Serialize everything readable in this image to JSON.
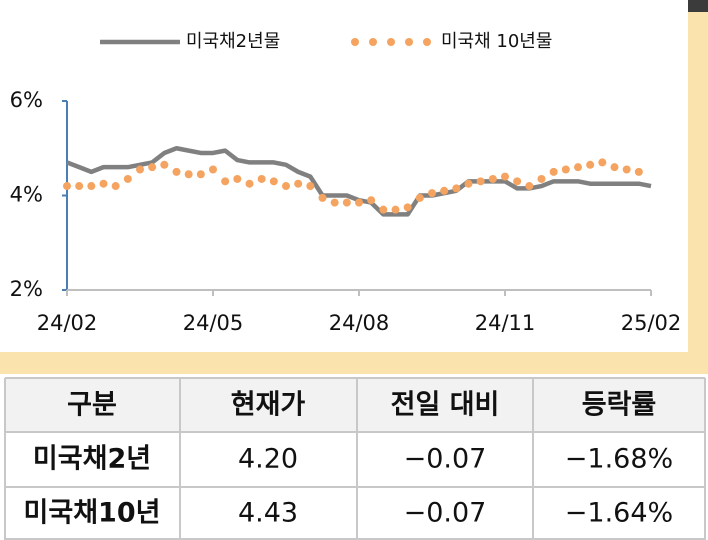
{
  "chart_data": {
    "type": "line",
    "categories": [
      "24/02",
      null,
      null,
      null,
      null,
      null,
      null,
      null,
      null,
      null,
      null,
      null,
      "24/05",
      null,
      null,
      null,
      null,
      null,
      null,
      null,
      null,
      null,
      null,
      null,
      "24/08",
      null,
      null,
      null,
      null,
      null,
      null,
      null,
      null,
      null,
      null,
      null,
      "24/11",
      null,
      null,
      null,
      null,
      null,
      null,
      null,
      null,
      null,
      null,
      null,
      "25/02"
    ],
    "series": [
      {
        "name": "미국채2년물",
        "color": "#808080",
        "style": "line",
        "values": [
          4.7,
          4.6,
          4.5,
          4.6,
          4.6,
          4.6,
          4.65,
          4.7,
          4.9,
          5.0,
          4.95,
          4.9,
          4.9,
          4.95,
          4.75,
          4.7,
          4.7,
          4.7,
          4.65,
          4.5,
          4.4,
          4.0,
          4.0,
          4.0,
          3.9,
          3.85,
          3.6,
          3.6,
          3.6,
          4.0,
          4.0,
          4.05,
          4.1,
          4.3,
          4.3,
          4.3,
          4.3,
          4.15,
          4.15,
          4.2,
          4.3,
          4.3,
          4.3,
          4.25,
          4.25,
          4.25,
          4.25,
          4.25,
          4.2
        ]
      },
      {
        "name": "미국채 10년물",
        "color": "#f4a460",
        "style": "dots",
        "values": [
          4.2,
          4.2,
          4.2,
          4.25,
          4.2,
          4.35,
          4.55,
          4.6,
          4.65,
          4.5,
          4.45,
          4.45,
          4.55,
          4.3,
          4.35,
          4.25,
          4.35,
          4.3,
          4.2,
          4.25,
          4.2,
          3.95,
          3.85,
          3.85,
          3.85,
          3.9,
          3.7,
          3.7,
          3.75,
          3.95,
          4.05,
          4.1,
          4.15,
          4.25,
          4.3,
          4.35,
          4.4,
          4.3,
          4.2,
          4.35,
          4.5,
          4.55,
          4.6,
          4.65,
          4.7,
          4.6,
          4.55,
          4.5,
          null
        ]
      }
    ],
    "ylim": [
      2,
      6
    ],
    "yticks": [
      {
        "value": 2,
        "label": "2%"
      },
      {
        "value": 4,
        "label": "4%"
      },
      {
        "value": 6,
        "label": "6%"
      }
    ],
    "grid": false,
    "legend": "top"
  },
  "table": {
    "header": [
      "구분",
      "현재가",
      "전일 대비",
      "등락률"
    ],
    "rows": [
      [
        "미국채2년",
        "4.20",
        "−0.07",
        "−1.68%"
      ],
      [
        "미국채10년",
        "4.43",
        "−0.07",
        "−1.64%"
      ]
    ]
  }
}
